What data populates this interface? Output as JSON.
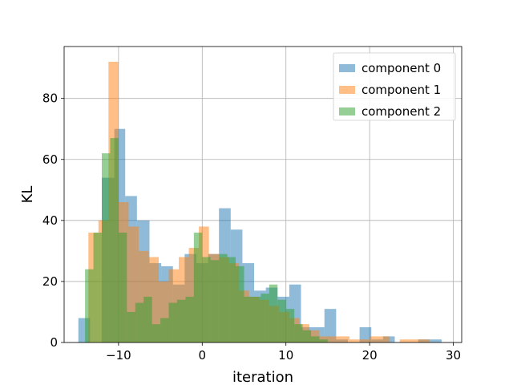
{
  "chart_data": {
    "type": "bar",
    "title": "",
    "xlabel": "iteration",
    "ylabel": "KL",
    "xlim": [
      -16.5,
      31.0
    ],
    "ylim": [
      0,
      97
    ],
    "grid": true,
    "legend_position": "top-right",
    "x_ticks": [
      -10,
      0,
      10,
      20,
      30
    ],
    "y_ticks": [
      0,
      20,
      40,
      60,
      80
    ],
    "series": [
      {
        "name": "component 0",
        "color": "#1f77b4",
        "alpha": 0.5,
        "bins": [
          [
            -14.8,
            -13.4,
            8
          ],
          [
            -13.4,
            -12.0,
            0
          ],
          [
            -12.0,
            -10.5,
            54
          ],
          [
            -10.5,
            -9.2,
            70
          ],
          [
            -9.2,
            -7.8,
            48
          ],
          [
            -7.8,
            -6.3,
            40
          ],
          [
            -6.3,
            -4.9,
            26
          ],
          [
            -4.9,
            -3.5,
            25
          ],
          [
            -3.5,
            -2.1,
            19
          ],
          [
            -2.1,
            -0.7,
            29
          ],
          [
            -0.7,
            0.7,
            26
          ],
          [
            0.7,
            2.0,
            29
          ],
          [
            2.0,
            3.4,
            44
          ],
          [
            3.4,
            4.8,
            37
          ],
          [
            4.8,
            6.2,
            26
          ],
          [
            6.2,
            7.6,
            17
          ],
          [
            7.6,
            9.0,
            18
          ],
          [
            9.0,
            10.4,
            15
          ],
          [
            10.4,
            11.8,
            19
          ],
          [
            11.8,
            13.2,
            5
          ],
          [
            13.2,
            14.6,
            5
          ],
          [
            14.6,
            16.0,
            11
          ],
          [
            16.0,
            17.4,
            1
          ],
          [
            17.4,
            18.8,
            0
          ],
          [
            18.8,
            20.2,
            5
          ],
          [
            20.2,
            21.6,
            1
          ],
          [
            21.6,
            23.0,
            2
          ],
          [
            23.0,
            24.4,
            0
          ],
          [
            24.4,
            25.8,
            0
          ],
          [
            25.8,
            27.2,
            1
          ],
          [
            27.2,
            28.6,
            1
          ]
        ]
      },
      {
        "name": "component 1",
        "color": "#ff7f0e",
        "alpha": 0.5,
        "bins": [
          [
            -13.6,
            -12.4,
            36
          ],
          [
            -12.4,
            -11.2,
            40
          ],
          [
            -11.2,
            -10.0,
            92
          ],
          [
            -10.0,
            -8.8,
            46
          ],
          [
            -8.8,
            -7.6,
            38
          ],
          [
            -7.6,
            -6.4,
            30
          ],
          [
            -6.4,
            -5.2,
            28
          ],
          [
            -5.2,
            -4.0,
            20
          ],
          [
            -4.0,
            -2.8,
            24
          ],
          [
            -2.8,
            -1.6,
            28
          ],
          [
            -1.6,
            -0.4,
            31
          ],
          [
            -0.4,
            0.8,
            38
          ],
          [
            0.8,
            2.0,
            29
          ],
          [
            2.0,
            3.2,
            28
          ],
          [
            3.2,
            4.4,
            26
          ],
          [
            4.4,
            5.6,
            17
          ],
          [
            5.6,
            6.8,
            15
          ],
          [
            6.8,
            8.0,
            14
          ],
          [
            8.0,
            9.2,
            12
          ],
          [
            9.2,
            10.4,
            10
          ],
          [
            10.4,
            11.6,
            8
          ],
          [
            11.6,
            12.8,
            6
          ],
          [
            12.8,
            14.0,
            4
          ],
          [
            14.0,
            15.2,
            2
          ],
          [
            15.2,
            16.4,
            2
          ],
          [
            16.4,
            17.6,
            2
          ],
          [
            17.6,
            18.8,
            1
          ],
          [
            18.8,
            20.0,
            1
          ],
          [
            20.0,
            21.2,
            2
          ],
          [
            21.2,
            22.4,
            2
          ],
          [
            22.4,
            23.6,
            0
          ],
          [
            23.6,
            24.8,
            1
          ],
          [
            24.8,
            26.0,
            1
          ],
          [
            26.0,
            27.2,
            1
          ],
          [
            27.2,
            28.4,
            0
          ]
        ]
      },
      {
        "name": "component 2",
        "color": "#2ca02c",
        "alpha": 0.5,
        "bins": [
          [
            -14.0,
            -13.0,
            24
          ],
          [
            -13.0,
            -12.0,
            36
          ],
          [
            -12.0,
            -11.0,
            62
          ],
          [
            -11.0,
            -10.0,
            67
          ],
          [
            -10.0,
            -9.0,
            36
          ],
          [
            -9.0,
            -8.0,
            10
          ],
          [
            -8.0,
            -7.0,
            13
          ],
          [
            -7.0,
            -6.0,
            15
          ],
          [
            -6.0,
            -5.0,
            6
          ],
          [
            -5.0,
            -4.0,
            8
          ],
          [
            -4.0,
            -3.0,
            13
          ],
          [
            -3.0,
            -2.0,
            14
          ],
          [
            -2.0,
            -1.0,
            15
          ],
          [
            -1.0,
            0.0,
            36
          ],
          [
            0.0,
            1.0,
            28
          ],
          [
            1.0,
            2.0,
            27
          ],
          [
            2.0,
            3.0,
            29
          ],
          [
            3.0,
            4.0,
            28
          ],
          [
            4.0,
            5.0,
            25
          ],
          [
            5.0,
            6.0,
            15
          ],
          [
            6.0,
            7.0,
            15
          ],
          [
            7.0,
            8.0,
            16
          ],
          [
            8.0,
            9.0,
            19
          ],
          [
            9.0,
            10.0,
            14
          ],
          [
            10.0,
            11.0,
            11
          ],
          [
            11.0,
            12.0,
            6
          ],
          [
            12.0,
            13.0,
            4
          ],
          [
            13.0,
            14.0,
            2
          ],
          [
            14.0,
            15.0,
            1
          ]
        ]
      }
    ]
  }
}
